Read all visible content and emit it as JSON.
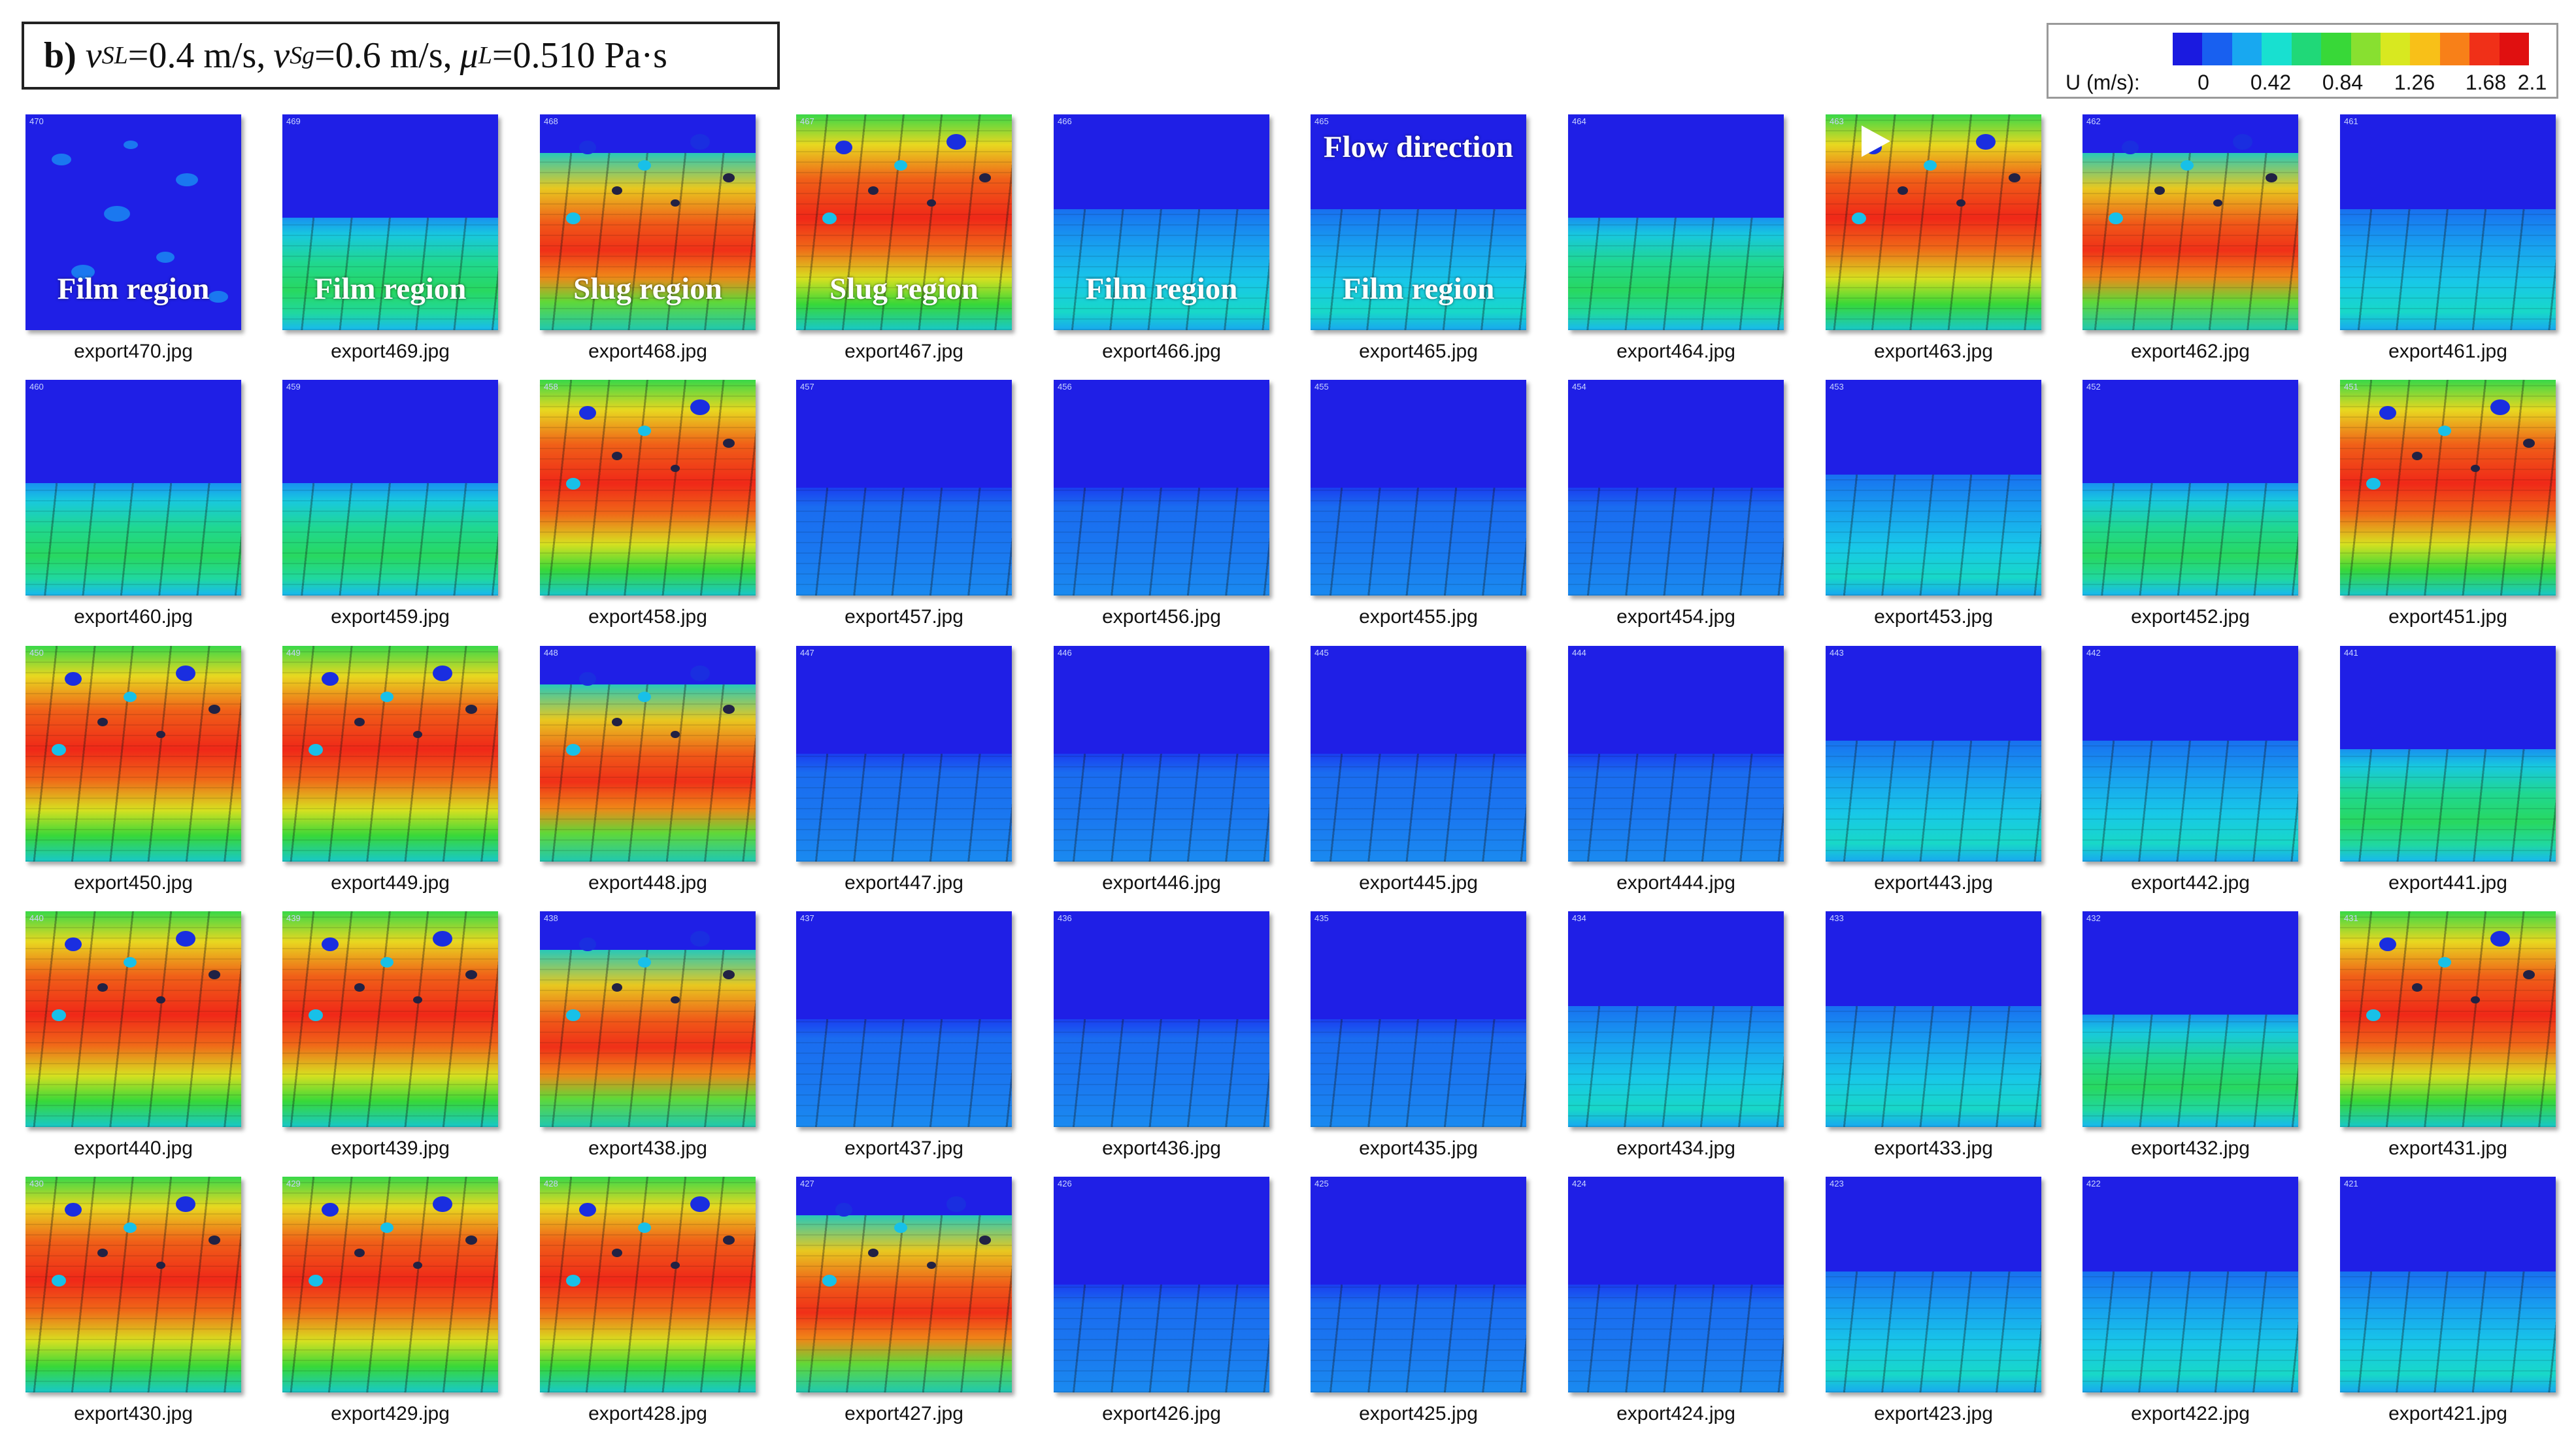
{
  "header": {
    "panel_letter": "b)",
    "vsl_symbol": "v",
    "vsl_sub": "SL",
    "vsl_value": "=0.4 m/s,",
    "vsg_symbol": "v",
    "vsg_sub": "Sg",
    "vsg_value": "=0.6 m/s,",
    "mu_symbol": "μ",
    "mu_sub": "L",
    "mu_value": "=0.510 Pa·s"
  },
  "legend": {
    "unit": "U (m/s):",
    "ticks": [
      "0",
      "0.42",
      "0.84",
      "1.26",
      "1.68",
      "2.1"
    ],
    "colors": [
      "#1a1ae0",
      "#1860f0",
      "#18a8f0",
      "#18e0d0",
      "#20d878",
      "#38d838",
      "#88e030",
      "#d8e820",
      "#f8c018",
      "#f88018",
      "#f03018",
      "#e01010"
    ]
  },
  "overlay_labels": {
    "film_region": "Film region",
    "slug_region": "Slug region",
    "flow_direction": "Flow direction"
  },
  "frames": [
    {
      "file": "export470.jpg",
      "no": "470",
      "kind": "gasfull",
      "overlay": "film"
    },
    {
      "file": "export469.jpg",
      "no": "469",
      "kind": "film",
      "overlay": "film"
    },
    {
      "file": "export468.jpg",
      "no": "468",
      "kind": "slugtop",
      "overlay": "slug"
    },
    {
      "file": "export467.jpg",
      "no": "467",
      "kind": "slug",
      "overlay": "slug"
    },
    {
      "file": "export466.jpg",
      "no": "466",
      "kind": "filmlow",
      "overlay": "film"
    },
    {
      "file": "export465.jpg",
      "no": "465",
      "kind": "filmlow",
      "overlay": "film"
    },
    {
      "file": "export464.jpg",
      "no": "464",
      "kind": "film",
      "overlay": ""
    },
    {
      "file": "export463.jpg",
      "no": "463",
      "kind": "slug",
      "overlay": ""
    },
    {
      "file": "export462.jpg",
      "no": "462",
      "kind": "slugtop",
      "overlay": ""
    },
    {
      "file": "export461.jpg",
      "no": "461",
      "kind": "filmlow",
      "overlay": ""
    },
    {
      "file": "export460.jpg",
      "no": "460",
      "kind": "film",
      "overlay": ""
    },
    {
      "file": "export459.jpg",
      "no": "459",
      "kind": "film",
      "overlay": ""
    },
    {
      "file": "export458.jpg",
      "no": "458",
      "kind": "slug",
      "overlay": ""
    },
    {
      "file": "export457.jpg",
      "no": "457",
      "kind": "lowflat",
      "overlay": ""
    },
    {
      "file": "export456.jpg",
      "no": "456",
      "kind": "lowflat",
      "overlay": ""
    },
    {
      "file": "export455.jpg",
      "no": "455",
      "kind": "lowflat",
      "overlay": ""
    },
    {
      "file": "export454.jpg",
      "no": "454",
      "kind": "lowflat",
      "overlay": ""
    },
    {
      "file": "export453.jpg",
      "no": "453",
      "kind": "filmlow",
      "overlay": ""
    },
    {
      "file": "export452.jpg",
      "no": "452",
      "kind": "film",
      "overlay": ""
    },
    {
      "file": "export451.jpg",
      "no": "451",
      "kind": "slug",
      "overlay": ""
    },
    {
      "file": "export450.jpg",
      "no": "450",
      "kind": "slug",
      "overlay": ""
    },
    {
      "file": "export449.jpg",
      "no": "449",
      "kind": "slug",
      "overlay": ""
    },
    {
      "file": "export448.jpg",
      "no": "448",
      "kind": "slugtop",
      "overlay": ""
    },
    {
      "file": "export447.jpg",
      "no": "447",
      "kind": "lowflat",
      "overlay": ""
    },
    {
      "file": "export446.jpg",
      "no": "446",
      "kind": "lowflat",
      "overlay": ""
    },
    {
      "file": "export445.jpg",
      "no": "445",
      "kind": "lowflat",
      "overlay": ""
    },
    {
      "file": "export444.jpg",
      "no": "444",
      "kind": "lowflat",
      "overlay": ""
    },
    {
      "file": "export443.jpg",
      "no": "443",
      "kind": "filmlow",
      "overlay": ""
    },
    {
      "file": "export442.jpg",
      "no": "442",
      "kind": "filmlow",
      "overlay": ""
    },
    {
      "file": "export441.jpg",
      "no": "441",
      "kind": "film",
      "overlay": ""
    },
    {
      "file": "export440.jpg",
      "no": "440",
      "kind": "slug",
      "overlay": ""
    },
    {
      "file": "export439.jpg",
      "no": "439",
      "kind": "slug",
      "overlay": ""
    },
    {
      "file": "export438.jpg",
      "no": "438",
      "kind": "slugtop",
      "overlay": ""
    },
    {
      "file": "export437.jpg",
      "no": "437",
      "kind": "lowflat",
      "overlay": ""
    },
    {
      "file": "export436.jpg",
      "no": "436",
      "kind": "lowflat",
      "overlay": ""
    },
    {
      "file": "export435.jpg",
      "no": "435",
      "kind": "lowflat",
      "overlay": ""
    },
    {
      "file": "export434.jpg",
      "no": "434",
      "kind": "filmlow",
      "overlay": ""
    },
    {
      "file": "export433.jpg",
      "no": "433",
      "kind": "filmlow",
      "overlay": ""
    },
    {
      "file": "export432.jpg",
      "no": "432",
      "kind": "film",
      "overlay": ""
    },
    {
      "file": "export431.jpg",
      "no": "431",
      "kind": "slug",
      "overlay": ""
    },
    {
      "file": "export430.jpg",
      "no": "430",
      "kind": "slug",
      "overlay": ""
    },
    {
      "file": "export429.jpg",
      "no": "429",
      "kind": "slug",
      "overlay": ""
    },
    {
      "file": "export428.jpg",
      "no": "428",
      "kind": "slug",
      "overlay": ""
    },
    {
      "file": "export427.jpg",
      "no": "427",
      "kind": "slugtop",
      "overlay": ""
    },
    {
      "file": "export426.jpg",
      "no": "426",
      "kind": "lowflat",
      "overlay": ""
    },
    {
      "file": "export425.jpg",
      "no": "425",
      "kind": "lowflat",
      "overlay": ""
    },
    {
      "file": "export424.jpg",
      "no": "424",
      "kind": "lowflat",
      "overlay": ""
    },
    {
      "file": "export423.jpg",
      "no": "423",
      "kind": "filmlow",
      "overlay": ""
    },
    {
      "file": "export422.jpg",
      "no": "422",
      "kind": "filmlow",
      "overlay": ""
    },
    {
      "file": "export421.jpg",
      "no": "421",
      "kind": "filmlow",
      "overlay": ""
    }
  ]
}
